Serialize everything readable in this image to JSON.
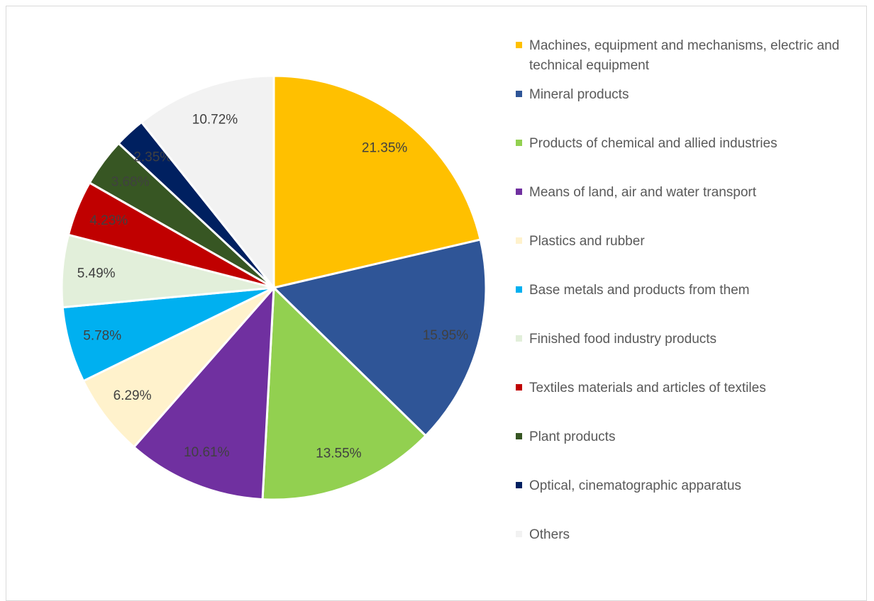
{
  "chart_data": {
    "type": "pie",
    "title": "",
    "slices": [
      {
        "label": "Machines, equipment and mechanisms, electric and technical equipment",
        "value": 21.35,
        "value_label": "21.35%",
        "color": "#FFC000",
        "label_color": "#404040"
      },
      {
        "label": "Mineral products",
        "value": 15.95,
        "value_label": "15.95%",
        "color": "#2F5597",
        "label_color": "#404040"
      },
      {
        "label": "Products of chemical and allied industries",
        "value": 13.55,
        "value_label": "13.55%",
        "color": "#92D050",
        "label_color": "#404040"
      },
      {
        "label": "Means of land, air and water transport",
        "value": 10.61,
        "value_label": "10.61%",
        "color": "#7030A0",
        "label_color": "#404040"
      },
      {
        "label": "Plastics and rubber",
        "value": 6.29,
        "value_label": "6.29%",
        "color": "#FFF2CC",
        "label_color": "#404040"
      },
      {
        "label": "Base metals and products from them",
        "value": 5.78,
        "value_label": "5.78%",
        "color": "#00B0F0",
        "label_color": "#404040"
      },
      {
        "label": "Finished food industry products",
        "value": 5.49,
        "value_label": "5.49%",
        "color": "#E2EFDA",
        "label_color": "#404040"
      },
      {
        "label": "Textiles materials and  articles of textiles",
        "value": 4.23,
        "value_label": "4.23%",
        "color": "#C00000",
        "label_color": "#404040"
      },
      {
        "label": "Plant products",
        "value": 3.68,
        "value_label": "3.68%",
        "color": "#375623",
        "label_color": "#404040"
      },
      {
        "label": "Optical, cinematographic apparatus",
        "value": 2.35,
        "value_label": "2.35%",
        "color": "#002060",
        "label_color": "#404040"
      },
      {
        "label": "Others",
        "value": 10.72,
        "value_label": "10.72%",
        "color": "#F2F2F2",
        "label_color": "#404040"
      }
    ],
    "legend": {
      "placement": "right"
    }
  }
}
